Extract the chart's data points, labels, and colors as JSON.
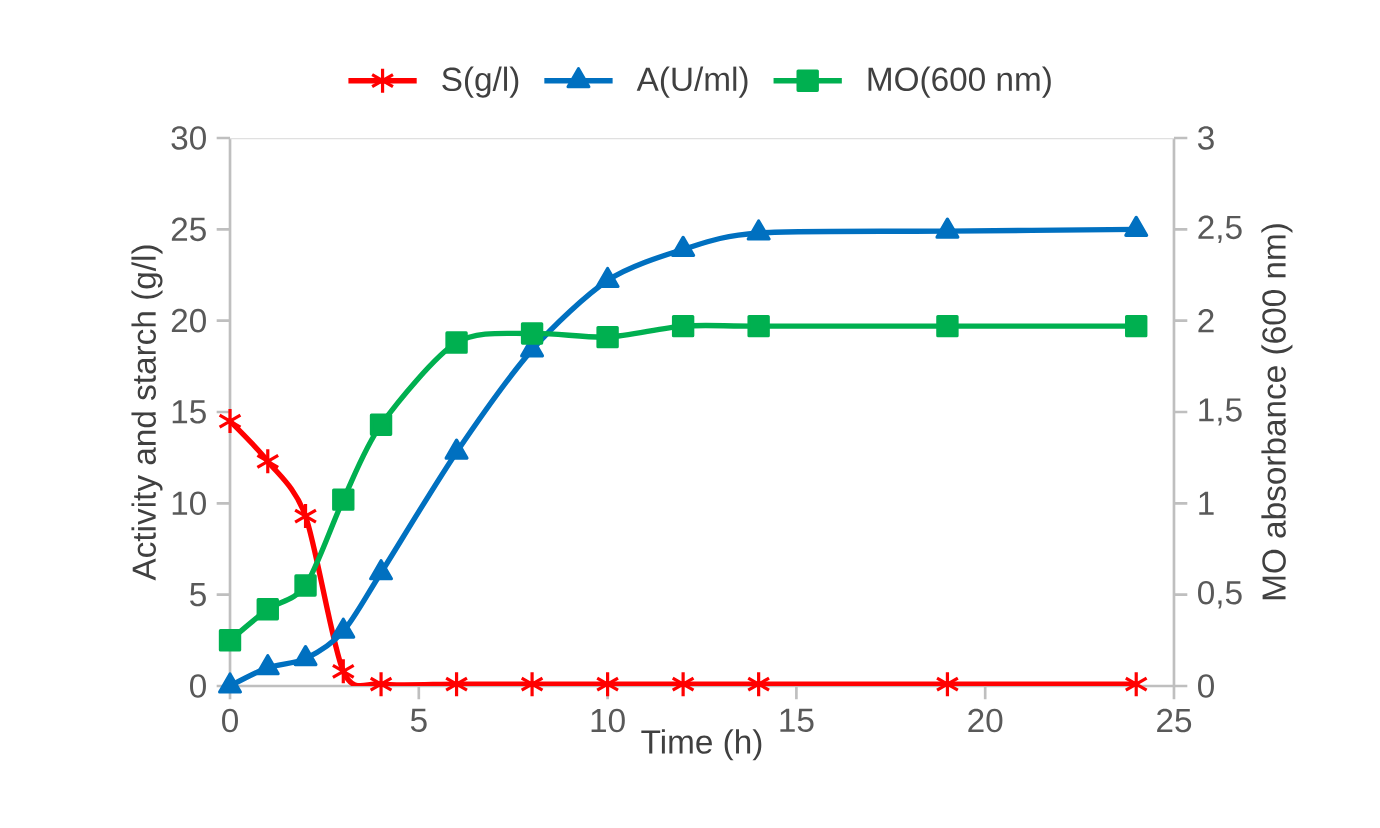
{
  "chart_data": {
    "type": "line",
    "xlabel": "Time (h)",
    "ylabel": "Activity and starch (g/l)",
    "y2label": "MO absorbance (600 nm)",
    "x": [
      0,
      1,
      2,
      3,
      4,
      6,
      8,
      10,
      12,
      14,
      19,
      24
    ],
    "xlim": [
      0,
      25
    ],
    "xticks": [
      0,
      5,
      10,
      15,
      20,
      25
    ],
    "ylim": [
      0,
      30
    ],
    "yticks": [
      0,
      5,
      10,
      15,
      20,
      25,
      30
    ],
    "y2lim": [
      0,
      3
    ],
    "y2ticks": [
      0,
      {
        "value": 0.5,
        "label": "0,5"
      },
      1,
      {
        "value": 1.5,
        "label": "1,5"
      },
      2,
      {
        "value": 2.5,
        "label": "2,5"
      },
      3
    ],
    "legend": "top",
    "grid": false,
    "series": [
      {
        "name": "S(g/l)",
        "color": "#ff0000",
        "marker": "cross",
        "values": [
          14.5,
          12.3,
          9.3,
          0.8,
          0.1,
          0.1,
          0.1,
          0.1,
          0.1,
          0.1,
          0.1,
          0.1
        ]
      },
      {
        "name": "A(U/ml)",
        "color": "#0070c0",
        "marker": "triangle",
        "values": [
          0,
          1.0,
          1.5,
          3.0,
          6.2,
          12.8,
          18.4,
          22.2,
          23.9,
          24.8,
          24.9,
          25.0
        ]
      },
      {
        "name": "MO(600 nm)",
        "color": "#00b050",
        "marker": "square",
        "axis": "y2",
        "values": [
          0.25,
          0.42,
          0.55,
          1.02,
          1.43,
          1.88,
          1.93,
          1.91,
          1.97,
          1.97,
          1.97,
          1.97
        ]
      }
    ]
  }
}
